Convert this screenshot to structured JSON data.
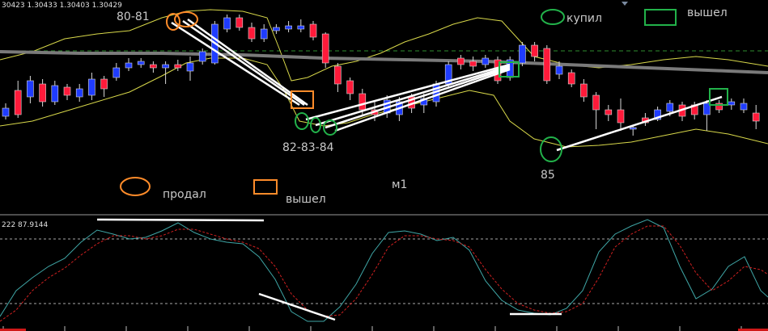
{
  "header": {
    "ohlc_readout": "30423 1.30433 1.30403 1.30429"
  },
  "annotations": {
    "mark_80_81": "80-81",
    "mark_82_84": "82-83-84",
    "mark_85": "85",
    "legend_bought": "купил",
    "legend_exited_top": "вышел",
    "legend_sold": "продал",
    "legend_exited_bottom": "вышел",
    "timeframe": "м1"
  },
  "oscillator": {
    "readout": "222 87.9144"
  },
  "colors": {
    "bull": "#1f3cff",
    "bear": "#ff1a3a",
    "envelope": "#d8d84a",
    "moving_average": "#7a7a7a",
    "signal": "#d02020",
    "main_line": "#3fa6a6",
    "sell_mark": "#ff8c2a",
    "buy_mark": "#22b24a"
  },
  "chart_data": [
    {
      "type": "candlestick",
      "bars": 62,
      "up_color": "bull",
      "down_color": "bear",
      "bands": [
        "envelope upper",
        "envelope lower"
      ],
      "ma": "gray"
    },
    {
      "type": "line",
      "series": [
        "main",
        "signal"
      ],
      "levels": [
        "upper dotted",
        "lower dotted"
      ]
    }
  ]
}
